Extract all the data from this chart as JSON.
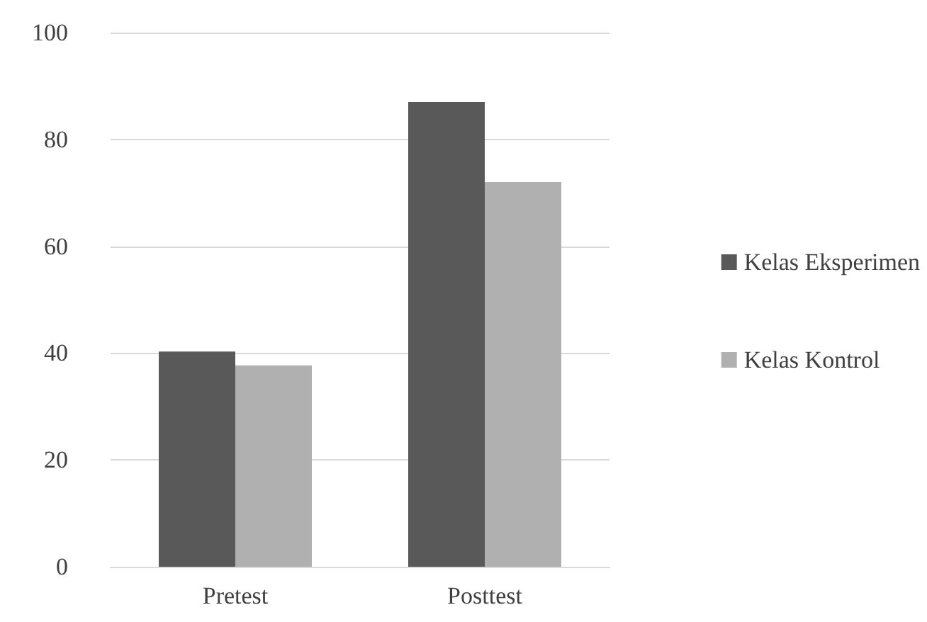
{
  "chart_data": {
    "type": "bar",
    "categories": [
      "Pretest",
      "Posttest"
    ],
    "series": [
      {
        "name": "Kelas Eksperimen",
        "color": "#595959",
        "values": [
          40.3,
          87
        ]
      },
      {
        "name": "Kelas Kontrol",
        "color": "#b0b0b0",
        "values": [
          37.7,
          72
        ]
      }
    ],
    "ylim": [
      0,
      100
    ],
    "yticks": [
      0,
      20,
      40,
      60,
      80,
      100
    ],
    "grid": "y",
    "legend": "right"
  }
}
